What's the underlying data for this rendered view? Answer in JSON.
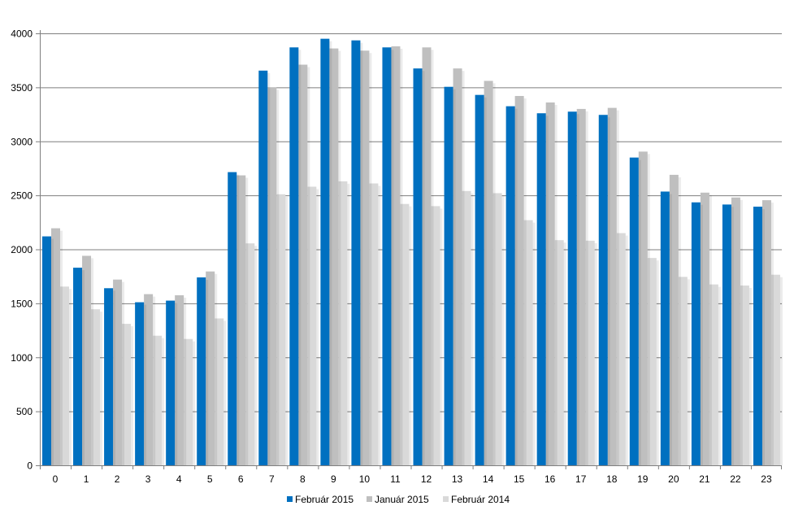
{
  "colors": {
    "feb2015": "#0070C0",
    "jan2015": "#BFBFBF",
    "feb2014": "#D9D9D9",
    "grid": "#7F7F7F",
    "axis": "#7F7F7F"
  },
  "chart_data": {
    "type": "bar",
    "title": "",
    "xlabel": "",
    "ylabel": "",
    "ylim": [
      0,
      4000
    ],
    "yticks": [
      0,
      500,
      1000,
      1500,
      2000,
      2500,
      3000,
      3500,
      4000
    ],
    "grid": "horizontal",
    "legend_position": "bottom",
    "categories": [
      "0",
      "1",
      "2",
      "3",
      "4",
      "5",
      "6",
      "7",
      "8",
      "9",
      "10",
      "11",
      "12",
      "13",
      "14",
      "15",
      "16",
      "17",
      "18",
      "19",
      "20",
      "21",
      "22",
      "23"
    ],
    "series": [
      {
        "name": "Február 2015",
        "color_key": "feb2015",
        "values": [
          2120,
          1830,
          1640,
          1510,
          1525,
          1740,
          2715,
          3655,
          3870,
          3950,
          3935,
          3870,
          3675,
          3505,
          3430,
          3325,
          3260,
          3275,
          3245,
          2850,
          2535,
          2435,
          2415,
          2395
        ]
      },
      {
        "name": "Január 2015",
        "color_key": "jan2015",
        "values": [
          2195,
          1940,
          1720,
          1585,
          1575,
          1795,
          2685,
          3500,
          3710,
          3860,
          3840,
          3880,
          3870,
          3675,
          3560,
          3420,
          3360,
          3300,
          3310,
          2905,
          2690,
          2525,
          2480,
          2455
        ]
      },
      {
        "name": "Február 2014",
        "color_key": "feb2014",
        "values": [
          1655,
          1445,
          1310,
          1200,
          1170,
          1360,
          2055,
          2510,
          2580,
          2630,
          2610,
          2420,
          2400,
          2540,
          2520,
          2270,
          2085,
          2080,
          2150,
          1920,
          1745,
          1675,
          1665,
          1765
        ]
      }
    ]
  }
}
